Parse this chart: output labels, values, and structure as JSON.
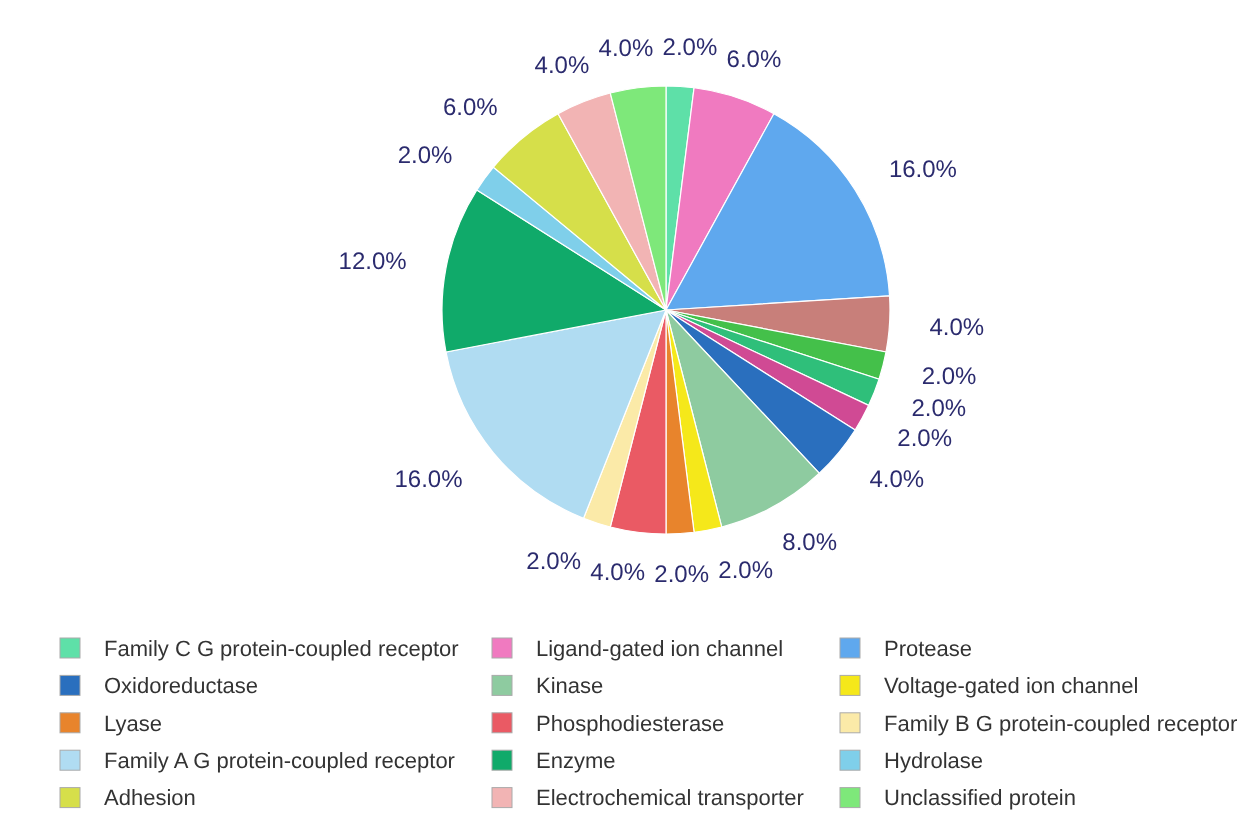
{
  "chart_data": {
    "type": "pie",
    "categories": [
      "Family C G protein-coupled receptor",
      "Ligand-gated ion channel",
      "Protease",
      null,
      null,
      null,
      null,
      "Oxidoreductase",
      "Kinase",
      "Voltage-gated ion channel",
      "Lyase",
      "Phosphodiesterase",
      "Family B G protein-coupled receptor",
      "Family A G protein-coupled receptor",
      "Enzyme",
      "Hydrolase",
      "Adhesion",
      "Electrochemical transporter",
      "Unclassified protein"
    ],
    "values": [
      2,
      6,
      16,
      4,
      2,
      2,
      2,
      4,
      8,
      2,
      2,
      4,
      2,
      16,
      12,
      2,
      6,
      4,
      4
    ],
    "value_labels": [
      "2.0%",
      "6.0%",
      "16.0%",
      "4.0%",
      "2.0%",
      "2.0%",
      "2.0%",
      "4.0%",
      "8.0%",
      "2.0%",
      "2.0%",
      "4.0%",
      "2.0%",
      "16.0%",
      "12.0%",
      "2.0%",
      "6.0%",
      "4.0%",
      "4.0%"
    ],
    "colors": [
      "#5ee0a8",
      "#f07ac0",
      "#5fa8ee",
      "#c87f7a",
      "#44c04a",
      "#2fbf7a",
      "#d04a94",
      "#2a6fbe",
      "#8ecba0",
      "#f5e81a",
      "#e8842c",
      "#ea5a64",
      "#fbeaa8",
      "#b0dcf2",
      "#10aa6a",
      "#7fcfea",
      "#d6df4a",
      "#f2b4b4",
      "#7ee87a"
    ],
    "legend": "bottom"
  }
}
